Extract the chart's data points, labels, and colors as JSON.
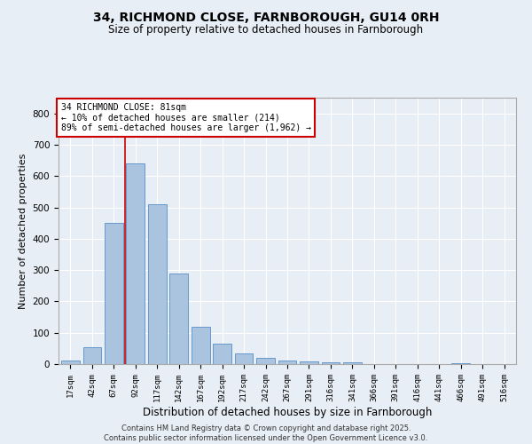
{
  "title1": "34, RICHMOND CLOSE, FARNBOROUGH, GU14 0RH",
  "title2": "Size of property relative to detached houses in Farnborough",
  "xlabel": "Distribution of detached houses by size in Farnborough",
  "ylabel": "Number of detached properties",
  "categories": [
    "17sqm",
    "42sqm",
    "67sqm",
    "92sqm",
    "117sqm",
    "142sqm",
    "167sqm",
    "192sqm",
    "217sqm",
    "242sqm",
    "267sqm",
    "291sqm",
    "316sqm",
    "341sqm",
    "366sqm",
    "391sqm",
    "416sqm",
    "441sqm",
    "466sqm",
    "491sqm",
    "516sqm"
  ],
  "values": [
    10,
    55,
    450,
    640,
    510,
    290,
    120,
    65,
    35,
    20,
    10,
    8,
    6,
    5,
    0,
    0,
    0,
    0,
    3,
    0,
    0
  ],
  "bar_color": "#aac4e0",
  "bar_edge_color": "#6699cc",
  "vline_x": 2.5,
  "vline_color": "#cc0000",
  "annotation_text": "34 RICHMOND CLOSE: 81sqm\n← 10% of detached houses are smaller (214)\n89% of semi-detached houses are larger (1,962) →",
  "annotation_box_color": "#cc0000",
  "annotation_text_color": "#000000",
  "background_color": "#e8eef5",
  "grid_color": "#ffffff",
  "footer": "Contains HM Land Registry data © Crown copyright and database right 2025.\nContains public sector information licensed under the Open Government Licence v3.0.",
  "ylim": [
    0,
    850
  ],
  "yticks": [
    0,
    100,
    200,
    300,
    400,
    500,
    600,
    700,
    800
  ]
}
